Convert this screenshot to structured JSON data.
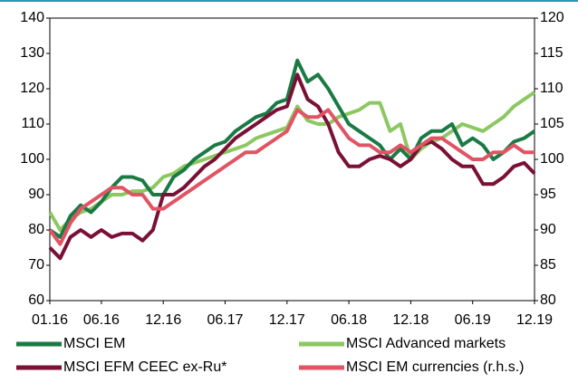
{
  "chart_data": {
    "type": "line",
    "categories": [
      "01.16",
      null,
      null,
      null,
      null,
      "06.16",
      null,
      null,
      null,
      null,
      null,
      "12.16",
      null,
      null,
      null,
      null,
      null,
      "06.17",
      null,
      null,
      null,
      null,
      null,
      "12.17",
      null,
      null,
      null,
      null,
      null,
      "06.18",
      null,
      null,
      null,
      null,
      null,
      "12.18",
      null,
      null,
      null,
      null,
      null,
      "06.19",
      null,
      null,
      null,
      null,
      null,
      "12.19"
    ],
    "ylim": [
      60,
      140
    ],
    "yticks": [
      60,
      70,
      80,
      90,
      100,
      110,
      120,
      130,
      140
    ],
    "y2lim": [
      80,
      120
    ],
    "y2ticks": [
      80,
      85,
      90,
      95,
      100,
      105,
      110,
      115,
      120
    ],
    "series": [
      {
        "name": "MSCI EM",
        "color": "#1b7a44",
        "values": [
          80,
          78,
          84,
          87,
          85,
          88,
          92,
          95,
          95,
          94,
          90,
          90,
          95,
          97,
          100,
          102,
          104,
          105,
          108,
          110,
          112,
          113,
          116,
          117,
          128,
          122,
          124,
          120,
          115,
          110,
          108,
          106,
          104,
          100,
          103,
          100,
          106,
          108,
          108,
          110,
          104,
          106,
          104,
          100,
          102,
          105,
          106,
          108
        ]
      },
      {
        "name": "MSCI Advanced markets",
        "color": "#8cc862",
        "values": [
          85,
          80,
          83,
          85,
          86,
          88,
          90,
          90,
          91,
          91,
          92,
          95,
          96,
          98,
          99,
          100,
          101,
          102,
          103,
          104,
          106,
          107,
          108,
          109,
          115,
          111,
          110,
          110,
          112,
          113,
          114,
          116,
          116,
          108,
          110,
          100,
          103,
          105,
          106,
          108,
          110,
          109,
          108,
          110,
          112,
          115,
          117,
          119
        ]
      },
      {
        "name": "MSCI EFM CEEC ex-Ru*",
        "color": "#7a1036",
        "values": [
          75,
          72,
          78,
          80,
          78,
          80,
          78,
          79,
          79,
          77,
          80,
          90,
          90,
          92,
          95,
          98,
          100,
          103,
          106,
          108,
          110,
          112,
          114,
          115,
          124,
          117,
          115,
          110,
          102,
          98,
          98,
          100,
          101,
          100,
          98,
          100,
          104,
          105,
          103,
          100,
          98,
          98,
          93,
          93,
          95,
          98,
          99,
          96
        ]
      },
      {
        "name": "MSCI EM currencies (r.h.s.)",
        "color": "#e05464",
        "axis": "y2",
        "values": [
          90,
          88,
          91,
          93,
          94,
          95,
          96,
          96,
          95,
          95,
          93,
          93,
          94,
          95,
          96,
          97,
          98,
          99,
          100,
          101,
          101,
          102,
          103,
          104,
          107,
          106,
          106,
          107,
          105,
          103,
          102,
          102,
          101,
          101,
          102,
          101,
          102,
          103,
          103,
          102,
          101,
          100,
          100,
          101,
          101,
          102,
          101,
          101
        ]
      }
    ]
  }
}
